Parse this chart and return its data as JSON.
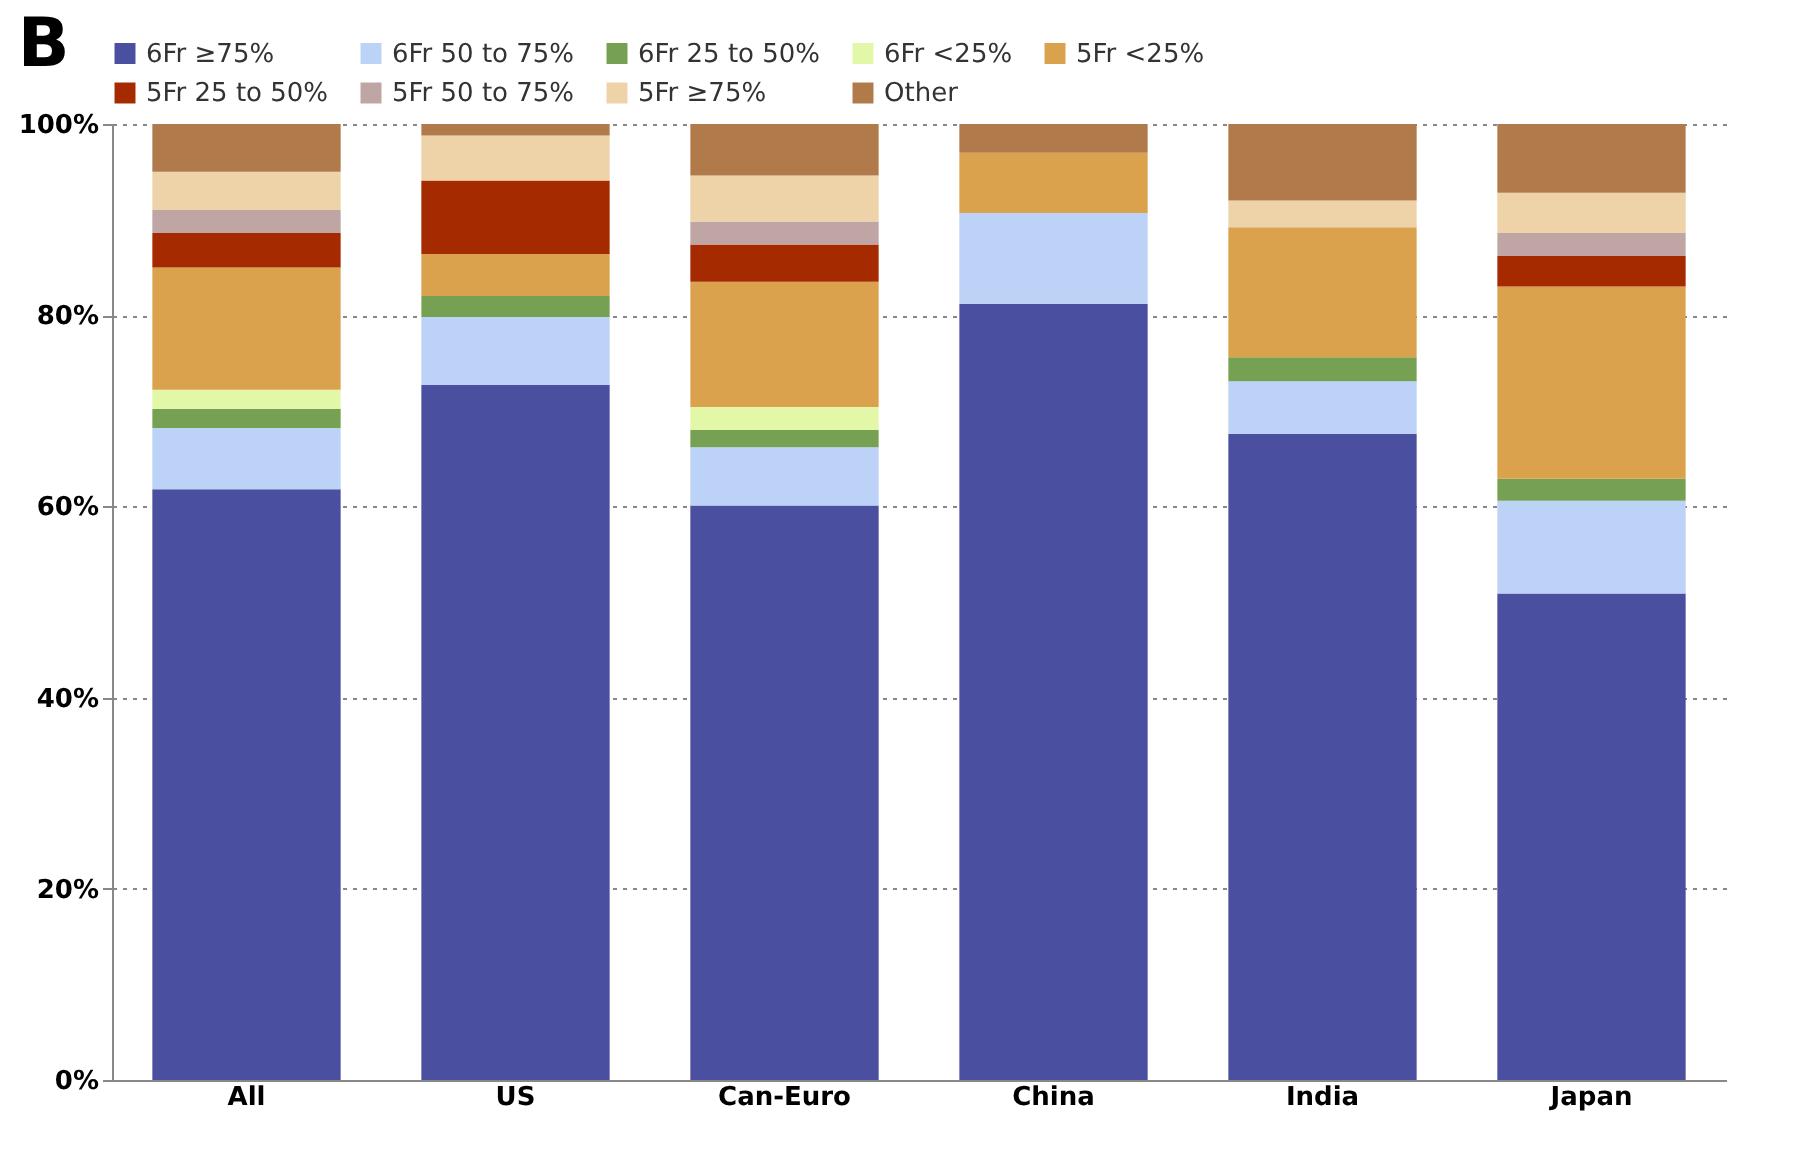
{
  "chart_data": {
    "type": "bar",
    "title": "B",
    "stacked": true,
    "categories": [
      "All",
      "US",
      "Can-Euro",
      "China",
      "India",
      "Japan"
    ],
    "series": [
      {
        "name": "6Fr ≥75%",
        "color": "#4a4fa0",
        "values": [
          61.8,
          72.7,
          60.1,
          81.2,
          67.6,
          50.9
        ]
      },
      {
        "name": "6Fr 50 to 75%",
        "color": "#bcd3f7",
        "values": [
          6.4,
          7.1,
          6.1,
          9.5,
          5.5,
          9.7
        ]
      },
      {
        "name": "6Fr 25 to 50%",
        "color": "#76a153",
        "values": [
          2.0,
          2.2,
          1.8,
          null,
          2.5,
          2.3
        ]
      },
      {
        "name": "6Fr <25%",
        "color": "#e3f7a8",
        "values": [
          2.0,
          null,
          2.4,
          null,
          null,
          null
        ]
      },
      {
        "name": "5Fr <25%",
        "color": "#dba24e",
        "values": [
          12.8,
          4.4,
          13.1,
          6.3,
          13.6,
          20.1
        ]
      },
      {
        "name": "5Fr 25 to 50%",
        "color": "#a52a00",
        "values": [
          3.6,
          7.7,
          3.9,
          null,
          null,
          3.2
        ]
      },
      {
        "name": "5Fr 50 to 75%",
        "color": "#c0a5a5",
        "values": [
          2.4,
          null,
          2.4,
          null,
          null,
          2.4
        ]
      },
      {
        "name": "5Fr ≥75%",
        "color": "#efd3a8",
        "values": [
          4.0,
          4.7,
          4.8,
          null,
          2.8,
          4.2
        ]
      },
      {
        "name": "Other",
        "color": "#b07a4a",
        "values": [
          5.0,
          1.2,
          5.4,
          3.0,
          8.0,
          7.2
        ]
      }
    ],
    "ylim": [
      0,
      100
    ],
    "yticks": [
      {
        "value": 0,
        "label": "0%"
      },
      {
        "value": 20,
        "label": "20%"
      },
      {
        "value": 40,
        "label": "40%"
      },
      {
        "value": 60,
        "label": "60%"
      },
      {
        "value": 80,
        "label": "80%"
      },
      {
        "value": 100,
        "label": "100%"
      }
    ],
    "grid": "y",
    "legend": "top"
  }
}
